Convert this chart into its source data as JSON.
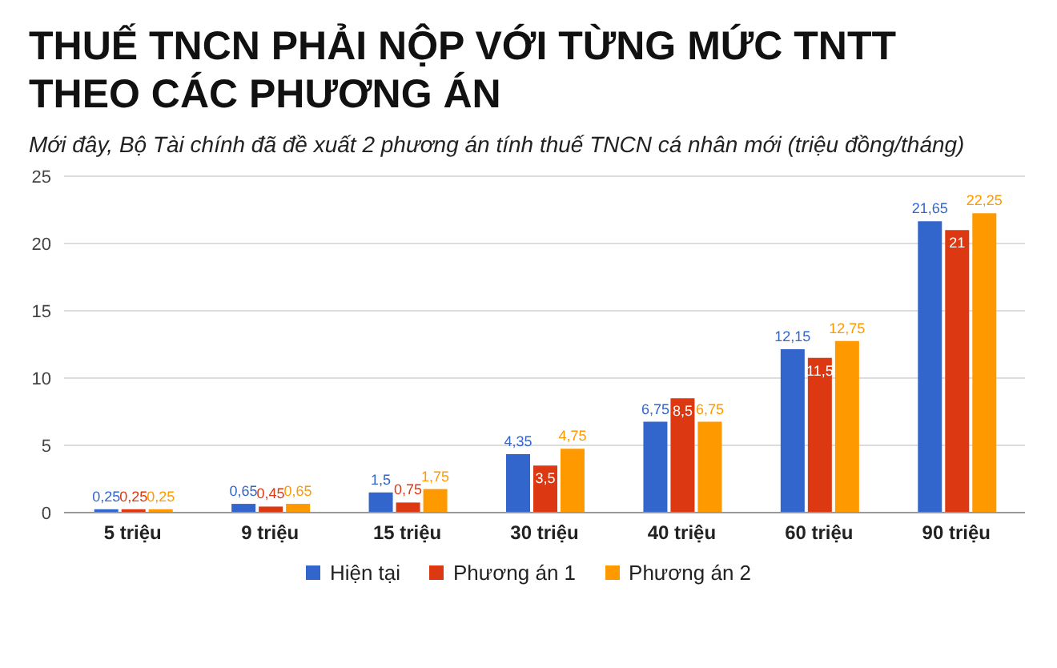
{
  "chart_data": {
    "type": "bar",
    "title": "THUẾ TNCN PHẢI NỘP VỚI TỪNG MỨC TNTT THEO CÁC PHƯƠNG ÁN",
    "subtitle": "Mới đây, Bộ Tài chính đã đề xuất 2 phương án tính thuế TNCN cá nhân mới (triệu đồng/tháng)",
    "categories": [
      "5 triệu",
      "9 triệu",
      "15 triệu",
      "30 triệu",
      "40 triệu",
      "60 triệu",
      "90 triệu"
    ],
    "series": [
      {
        "name": "Hiện tại",
        "color": "#3366cc",
        "values": [
          0.25,
          0.65,
          1.5,
          4.35,
          6.75,
          12.15,
          21.65
        ],
        "value_labels": [
          "0,25",
          "0,65",
          "1,5",
          "4,35",
          "6,75",
          "12,15",
          "21,65"
        ]
      },
      {
        "name": "Phương án 1",
        "color": "#dc3912",
        "values": [
          0.25,
          0.45,
          0.75,
          3.5,
          8.5,
          11.5,
          21
        ],
        "value_labels": [
          "0,25",
          "0,45",
          "0,75",
          "3,5",
          "8,5",
          "11,5",
          "21"
        ]
      },
      {
        "name": "Phương án 2",
        "color": "#ff9900",
        "values": [
          0.25,
          0.65,
          1.75,
          4.75,
          6.75,
          12.75,
          22.25
        ],
        "value_labels": [
          "0,25",
          "0,65",
          "1,75",
          "4,75",
          "6,75",
          "12,75",
          "22,25"
        ]
      }
    ],
    "ylim": [
      0,
      25
    ],
    "yticks": [
      0,
      5,
      10,
      15,
      20,
      25
    ],
    "grid": "y",
    "legend": "bottom"
  }
}
